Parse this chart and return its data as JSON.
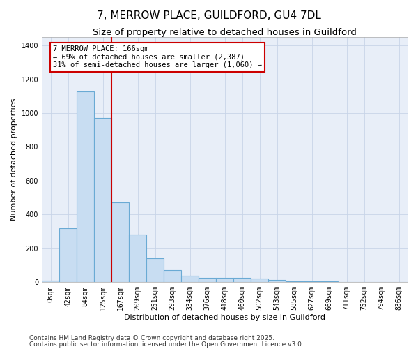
{
  "title": "7, MERROW PLACE, GUILDFORD, GU4 7DL",
  "subtitle": "Size of property relative to detached houses in Guildford",
  "xlabel": "Distribution of detached houses by size in Guildford",
  "ylabel": "Number of detached properties",
  "categories": [
    "0sqm",
    "42sqm",
    "84sqm",
    "125sqm",
    "167sqm",
    "209sqm",
    "251sqm",
    "293sqm",
    "334sqm",
    "376sqm",
    "418sqm",
    "460sqm",
    "502sqm",
    "543sqm",
    "585sqm",
    "627sqm",
    "669sqm",
    "711sqm",
    "752sqm",
    "794sqm",
    "836sqm"
  ],
  "values": [
    10,
    320,
    1130,
    970,
    470,
    280,
    140,
    70,
    40,
    25,
    25,
    25,
    20,
    15,
    5,
    5,
    5,
    2,
    2,
    1,
    1
  ],
  "bar_color": "#c8ddf2",
  "bar_edge_color": "#6aaad4",
  "bar_linewidth": 0.8,
  "grid_color": "#c8d4e8",
  "bg_color": "#e8eef8",
  "red_line_x": 3.5,
  "red_line_color": "#cc0000",
  "annotation_text": "7 MERROW PLACE: 166sqm\n← 69% of detached houses are smaller (2,387)\n31% of semi-detached houses are larger (1,060) →",
  "annotation_box_color": "#cc0000",
  "annotation_bg": "#ffffff",
  "ylim": [
    0,
    1450
  ],
  "yticks": [
    0,
    200,
    400,
    600,
    800,
    1000,
    1200,
    1400
  ],
  "footer1": "Contains HM Land Registry data © Crown copyright and database right 2025.",
  "footer2": "Contains public sector information licensed under the Open Government Licence v3.0.",
  "title_fontsize": 11,
  "subtitle_fontsize": 9.5,
  "axis_label_fontsize": 8,
  "tick_fontsize": 7,
  "annotation_fontsize": 7.5,
  "footer_fontsize": 6.5
}
